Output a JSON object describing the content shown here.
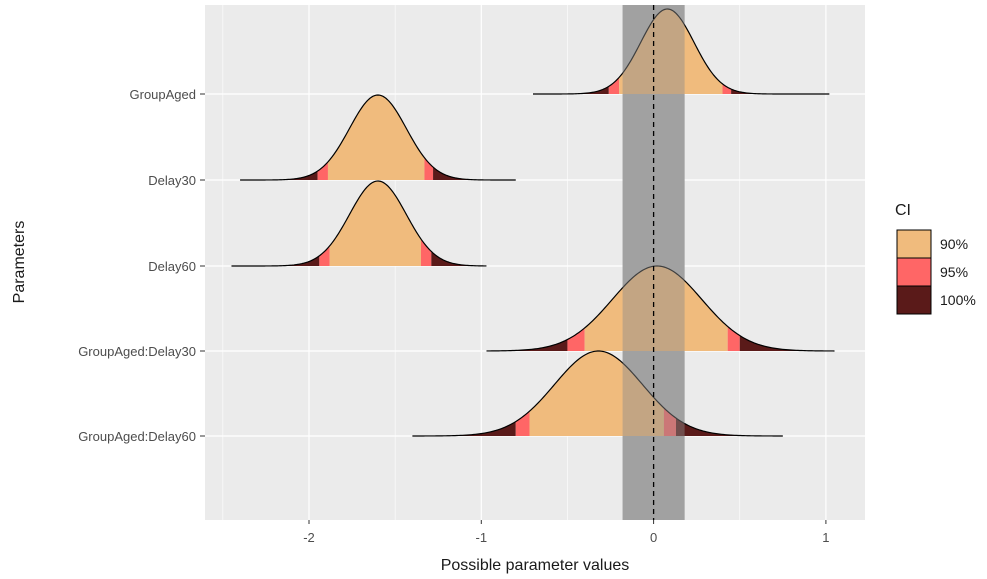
{
  "chart_data": {
    "type": "ridgeline",
    "xlabel": "Possible parameter values",
    "ylabel": "Parameters",
    "xlim": [
      -2.6,
      1.22
    ],
    "x_ticks": [
      -2,
      -1,
      0,
      1
    ],
    "x_tick_labels": [
      "-2",
      "-1",
      "0",
      "1"
    ],
    "reference_line": {
      "x": 0,
      "style": "dashed"
    },
    "rope": {
      "from": -0.18,
      "to": 0.18,
      "color": "#b3b3b3"
    },
    "legend": {
      "title": "CI",
      "position": "right",
      "entries": [
        {
          "label": "90%",
          "color": "#f0bb7d"
        },
        {
          "label": "95%",
          "color": "#ff6666"
        },
        {
          "label": "100%",
          "color": "#5a1a19"
        }
      ]
    },
    "grid": true,
    "panel_color": "#ebebeb",
    "parameters": [
      {
        "label": "GroupAged",
        "mode": 0.08,
        "sd": 0.155,
        "ci90": [
          -0.2,
          0.4
        ],
        "ci95": [
          -0.26,
          0.45
        ],
        "range": [
          -0.7,
          1.02
        ]
      },
      {
        "label": "Delay30",
        "mode": -1.6,
        "sd": 0.165,
        "ci90": [
          -1.89,
          -1.33
        ],
        "ci95": [
          -1.95,
          -1.28
        ],
        "range": [
          -2.4,
          -0.8
        ]
      },
      {
        "label": "Delay60",
        "mode": -1.6,
        "sd": 0.165,
        "ci90": [
          -1.88,
          -1.35
        ],
        "ci95": [
          -1.94,
          -1.29
        ],
        "range": [
          -2.45,
          -0.97
        ]
      },
      {
        "label": "GroupAged:Delay30",
        "mode": 0.02,
        "sd": 0.26,
        "ci90": [
          -0.4,
          0.43
        ],
        "ci95": [
          -0.5,
          0.5
        ],
        "range": [
          -0.97,
          1.05
        ]
      },
      {
        "label": "GroupAged:Delay60",
        "mode": -0.32,
        "sd": 0.255,
        "ci90": [
          -0.72,
          0.06
        ],
        "ci95": [
          -0.8,
          0.13
        ],
        "range": [
          -1.4,
          0.75
        ]
      }
    ]
  }
}
